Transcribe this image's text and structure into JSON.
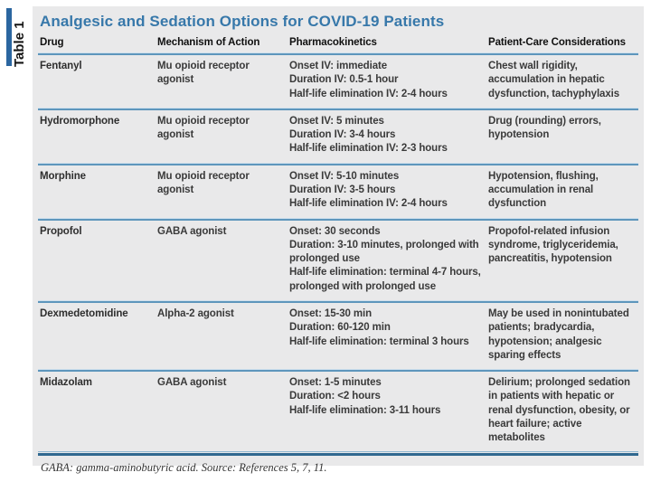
{
  "table_label": "Table 1",
  "title": "Analgesic and Sedation Options for COVID-19 Patients",
  "columns": [
    "Drug",
    "Mechanism of Action",
    "Pharmacokinetics",
    "Patient-Care Considerations"
  ],
  "rows": [
    {
      "drug": "Fentanyl",
      "mechanism": "Mu opioid receptor agonist",
      "pharmacokinetics": [
        "Onset IV: immediate",
        "Duration IV: 0.5-1 hour",
        "Half-life elimination IV: 2-4 hours"
      ],
      "considerations": "Chest wall rigidity, accumulation in hepatic dysfunction, tachyphylaxis"
    },
    {
      "drug": "Hydromorphone",
      "mechanism": "Mu opioid receptor agonist",
      "pharmacokinetics": [
        "Onset IV: 5 minutes",
        "Duration IV: 3-4 hours",
        "Half-life elimination IV: 2-3 hours"
      ],
      "considerations": "Drug (rounding) errors, hypotension"
    },
    {
      "drug": "Morphine",
      "mechanism": "Mu opioid receptor agonist",
      "pharmacokinetics": [
        "Onset IV: 5-10 minutes",
        "Duration IV: 3-5 hours",
        "Half-life elimination IV: 2-4 hours"
      ],
      "considerations": "Hypotension, flushing, accumulation in renal dysfunction"
    },
    {
      "drug": "Propofol",
      "mechanism": "GABA agonist",
      "pharmacokinetics": [
        "Onset: 30 seconds",
        "Duration: 3-10 minutes, prolonged with prolonged use",
        "Half-life elimination: terminal 4-7 hours, prolonged with prolonged use"
      ],
      "considerations": "Propofol-related infusion syndrome, triglyceridemia, pancreatitis, hypotension"
    },
    {
      "drug": "Dexmedetomidine",
      "mechanism": "Alpha-2 agonist",
      "pharmacokinetics": [
        "Onset: 15-30 min",
        "Duration: 60-120 min",
        "Half-life elimination: terminal 3 hours"
      ],
      "considerations": "May be used in nonintubated patients; bradycardia, hypotension; analgesic sparing effects"
    },
    {
      "drug": "Midazolam",
      "mechanism": "GABA agonist",
      "pharmacokinetics": [
        "Onset: 1-5 minutes",
        "Duration: <2 hours",
        "Half-life elimination: 3-11 hours"
      ],
      "considerations": "Delirium; prolonged sedation in patients with hepatic or renal dysfunction, obesity, or heart failure; active metabolites"
    }
  ],
  "footnote": "GABA: gamma-aminobutyric acid. Source: References 5, 7, 11.",
  "colors": {
    "title_blue": "#3778aa",
    "separator_blue": "#5e96bc",
    "separator_highlight": "#cfe0ed",
    "footer_line_blue": "#2f6890",
    "panel_background": "#e9e9ea",
    "label_bar_blue": "#2b66a0",
    "body_text": "#3a3a3a"
  }
}
